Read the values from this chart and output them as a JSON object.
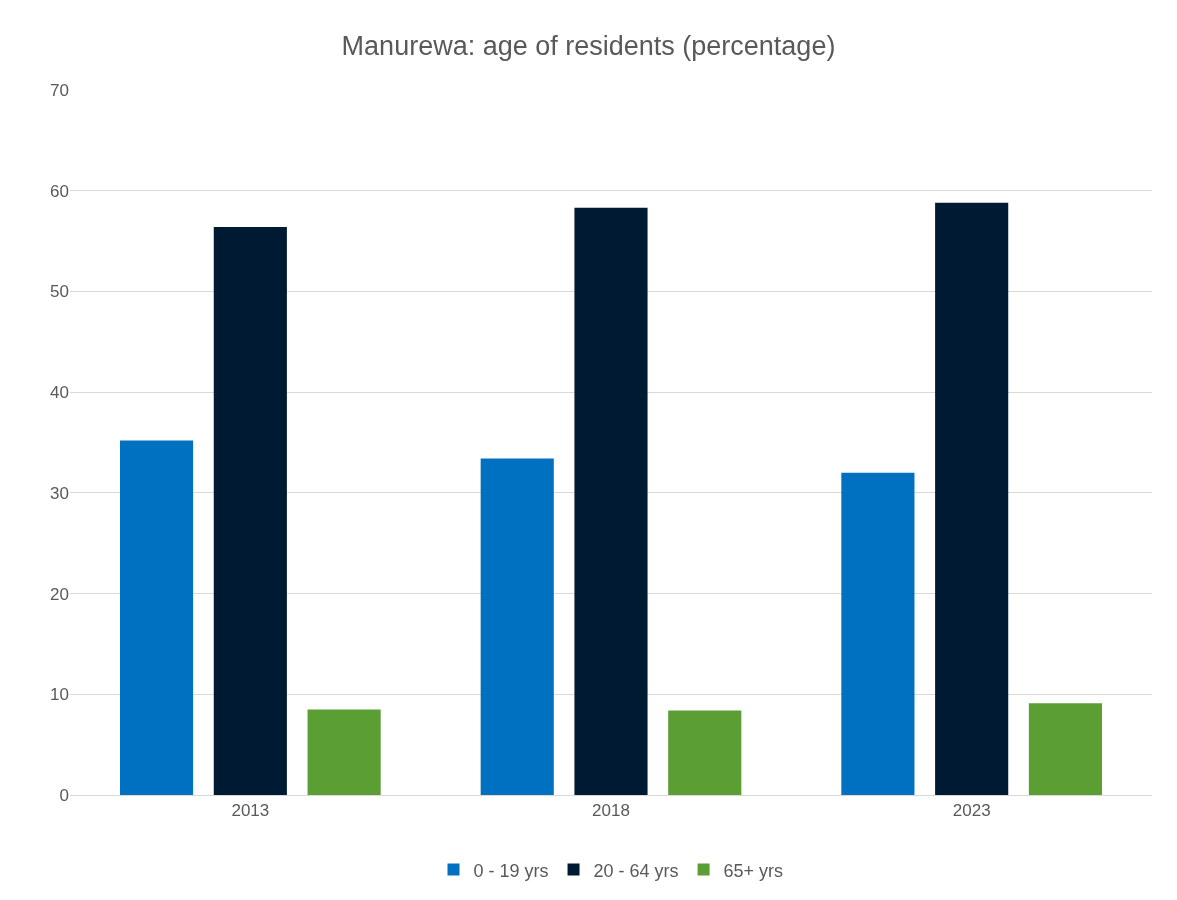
{
  "chart_data": {
    "type": "bar",
    "title": "Manurewa: age of residents (percentage)",
    "categories": [
      "2013",
      "2018",
      "2023"
    ],
    "series": [
      {
        "name": "0 - 19 yrs",
        "color": "#0070c0",
        "values": [
          35.2,
          33.4,
          32.0
        ]
      },
      {
        "name": "20 - 64 yrs",
        "color": "#001a33",
        "values": [
          56.4,
          58.3,
          58.8
        ]
      },
      {
        "name": "65+ yrs",
        "color": "#5b9e34",
        "values": [
          8.5,
          8.4,
          9.1
        ]
      }
    ],
    "ylim": [
      0,
      70
    ],
    "yticks": [
      0,
      10,
      20,
      30,
      40,
      50,
      60,
      70
    ],
    "grid": "y",
    "legend": "bottom"
  }
}
